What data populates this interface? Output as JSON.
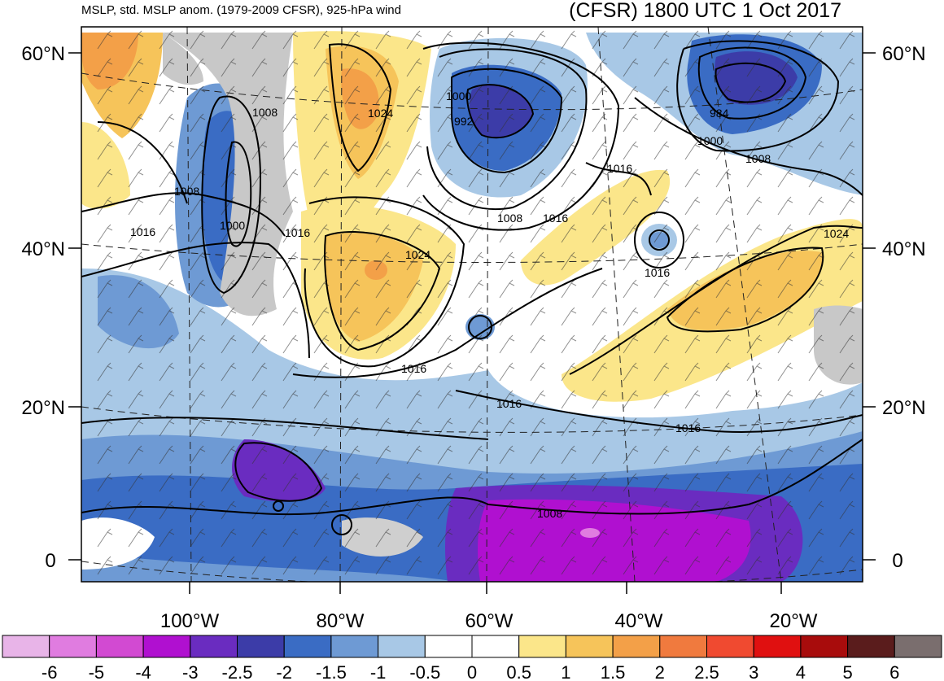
{
  "titles": {
    "left": "MSLP, std. MSLP anom. (1979-2009 CFSR), 925-hPa wind",
    "right": "(CFSR) 1800 UTC 1 Oct 2017"
  },
  "map": {
    "lat_labels": [
      "60°N",
      "40°N",
      "20°N",
      "0"
    ],
    "lon_labels": [
      "100°W",
      "80°W",
      "60°W",
      "40°W",
      "20°W"
    ],
    "isobar_labels": [
      "1008",
      "1008",
      "1016",
      "1000",
      "1016",
      "1024",
      "1024",
      "1000",
      "992",
      "1008",
      "1016",
      "1016",
      "984",
      "1000",
      "1008",
      "1016",
      "1024",
      "1016",
      "1016",
      "1016",
      "1008"
    ]
  },
  "colorbar": {
    "labels": [
      "-6",
      "-5",
      "-4",
      "-3",
      "-2.5",
      "-2",
      "-1.5",
      "-1",
      "-0.5",
      "0",
      "0.5",
      "1",
      "1.5",
      "2",
      "2.5",
      "3",
      "4",
      "5",
      "6"
    ],
    "colors": [
      "#e8b4e8",
      "#e07ce0",
      "#d24ad2",
      "#b010d0",
      "#6a2cc0",
      "#3c3ca8",
      "#3a6cc4",
      "#6e9ad4",
      "#a8c8e6",
      "#ffffff",
      "#ffffff",
      "#fbe68a",
      "#f6c45a",
      "#f3a048",
      "#f07a3e",
      "#f04a30",
      "#e01010",
      "#a80c0c",
      "#5a1c1c",
      "#7a6e6e"
    ]
  }
}
